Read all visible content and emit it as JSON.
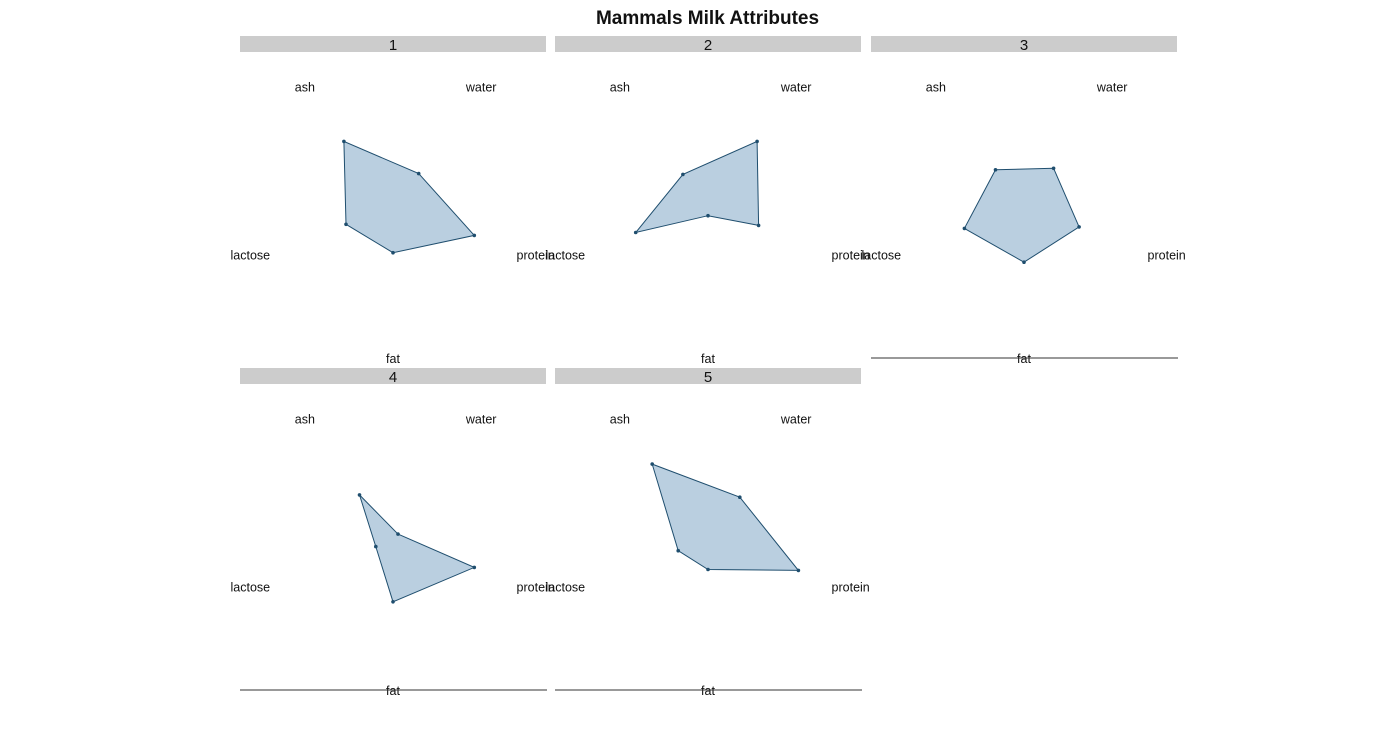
{
  "chart_data": {
    "type": "radar",
    "title": "Mammals Milk Attributes",
    "axes": [
      "water",
      "protein",
      "fat",
      "lactose",
      "ash"
    ],
    "fill_color": "#BACFE0",
    "line_color": "#1F4E6E",
    "strip_color": "#CCCCCC",
    "panels": [
      {
        "label": "1",
        "values": {
          "water": 0.46,
          "protein": 0.9,
          "fat": 0.46,
          "lactose": 0.52,
          "ash": 0.88
        }
      },
      {
        "label": "2",
        "values": {
          "water": 0.88,
          "protein": 0.56,
          "fat": 0.07,
          "lactose": 0.8,
          "ash": 0.45
        }
      },
      {
        "label": "3",
        "values": {
          "water": 0.53,
          "protein": 0.61,
          "fat": 0.56,
          "lactose": 0.66,
          "ash": 0.51
        }
      },
      {
        "label": "4",
        "values": {
          "water": 0.09,
          "protein": 0.9,
          "fat": 0.64,
          "lactose": 0.19,
          "ash": 0.6
        }
      },
      {
        "label": "5",
        "values": {
          "water": 0.57,
          "protein": 1.0,
          "fat": 0.3,
          "lactose": 0.33,
          "ash": 1.0
        }
      }
    ]
  }
}
